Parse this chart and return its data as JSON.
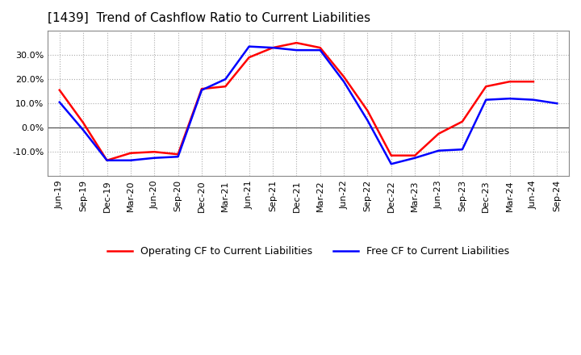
{
  "title": "[1439]  Trend of Cashflow Ratio to Current Liabilities",
  "x_labels": [
    "Jun-19",
    "Sep-19",
    "Dec-19",
    "Mar-20",
    "Jun-20",
    "Sep-20",
    "Dec-20",
    "Mar-21",
    "Jun-21",
    "Sep-21",
    "Dec-21",
    "Mar-22",
    "Jun-22",
    "Sep-22",
    "Dec-22",
    "Mar-23",
    "Jun-23",
    "Sep-23",
    "Dec-23",
    "Mar-24",
    "Jun-24",
    "Sep-24"
  ],
  "operating_cf": [
    15.5,
    2.0,
    -13.5,
    -10.5,
    -10.0,
    -11.0,
    16.0,
    17.0,
    29.0,
    33.0,
    35.0,
    33.0,
    21.0,
    7.0,
    -11.5,
    -11.5,
    -2.5,
    2.5,
    17.0,
    19.0,
    19.0,
    null
  ],
  "free_cf": [
    10.5,
    -1.0,
    -13.5,
    -13.5,
    -12.5,
    -12.0,
    15.5,
    20.0,
    33.5,
    33.0,
    32.0,
    32.0,
    19.0,
    3.0,
    -15.0,
    -12.5,
    -9.5,
    -9.0,
    11.5,
    12.0,
    11.5,
    10.0
  ],
  "operating_color": "#FF0000",
  "free_color": "#0000FF",
  "ylim": [
    -20.0,
    40.0
  ],
  "yticks": [
    -10.0,
    0.0,
    10.0,
    20.0,
    30.0
  ],
  "grid_color": "#AAAAAA",
  "background_color": "#FFFFFF",
  "title_fontsize": 11,
  "tick_fontsize": 8,
  "legend_fontsize": 9,
  "legend_labels": [
    "Operating CF to Current Liabilities",
    "Free CF to Current Liabilities"
  ]
}
